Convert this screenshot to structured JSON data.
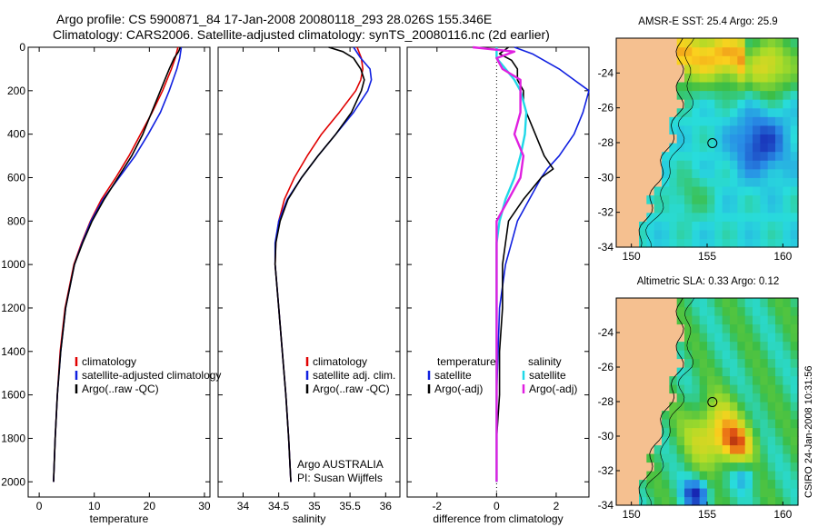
{
  "header": {
    "line1": "Argo profile: CS 5900871_84 17-Jan-2008 20080118_293 28.026S 155.346E",
    "line2": "Climatology: CARS2006. Satellite-adjusted climatology: synTS_20080116.nc (2d earlier)"
  },
  "colors": {
    "climatology": "#e00000",
    "satellite": "#1020e0",
    "argo": "#000000",
    "sat_salinity": "#20d8e8",
    "argo_adj_salinity": "#e020e0",
    "land": "#f5c090"
  },
  "credit": {
    "org": "Argo AUSTRALIA",
    "pi": "PI: Susan Wijffels"
  },
  "stamp": "CSIRO 24-Jan-2008 10:31:56",
  "chart_data": [
    {
      "type": "line",
      "name": "temperature-profile",
      "xlabel": "temperature",
      "ylabel": "",
      "xlim": [
        -2,
        31
      ],
      "ylim": [
        2070,
        0
      ],
      "xticks": [
        0,
        10,
        20,
        30
      ],
      "yticks": [
        0,
        200,
        400,
        600,
        800,
        1000,
        1200,
        1400,
        1600,
        1800,
        2000
      ],
      "legend": [
        "climatology",
        "satellite-adjusted climatology",
        "Argo(..raw -QC)"
      ],
      "series": [
        {
          "name": "climatology",
          "color": "#e00000",
          "depth": [
            0,
            50,
            100,
            150,
            200,
            300,
            400,
            500,
            600,
            700,
            800,
            900,
            1000,
            1200,
            1400,
            1600,
            1800,
            2000
          ],
          "values": [
            25.2,
            24.7,
            24.0,
            23.2,
            22.4,
            20.5,
            18.4,
            16.3,
            13.9,
            11.3,
            9.3,
            7.7,
            6.3,
            4.7,
            3.8,
            3.3,
            2.9,
            2.6
          ]
        },
        {
          "name": "satellite-adjusted climatology",
          "color": "#1020e0",
          "depth": [
            0,
            50,
            100,
            150,
            200,
            300,
            400,
            500,
            600,
            700,
            800,
            900,
            1000,
            1200,
            1400,
            1600,
            1800,
            2000
          ],
          "values": [
            25.8,
            25.5,
            25.0,
            24.3,
            23.6,
            22.0,
            19.8,
            17.4,
            14.5,
            11.6,
            9.4,
            7.8,
            6.4,
            4.8,
            3.9,
            3.3,
            2.9,
            2.6
          ]
        },
        {
          "name": "Argo(..raw -QC)",
          "color": "#000000",
          "depth": [
            0,
            20,
            50,
            100,
            150,
            200,
            300,
            400,
            500,
            600,
            700,
            800,
            900,
            1000,
            1200,
            1400,
            1600,
            1800,
            2000
          ],
          "values": [
            25.6,
            25.3,
            24.5,
            23.6,
            22.8,
            22.0,
            20.4,
            18.8,
            16.8,
            14.3,
            11.8,
            9.6,
            7.9,
            6.4,
            4.8,
            3.9,
            3.3,
            2.9,
            2.6
          ]
        }
      ]
    },
    {
      "type": "line",
      "name": "salinity-profile",
      "xlabel": "salinity",
      "ylabel": "",
      "xlim": [
        33.65,
        36.2
      ],
      "ylim": [
        2070,
        0
      ],
      "xticks": [
        34,
        34.5,
        35,
        35.5,
        36
      ],
      "legend": [
        "climatology",
        "satellite adj. clim.",
        "Argo(..raw -QC)"
      ],
      "series": [
        {
          "name": "climatology",
          "color": "#e00000",
          "depth": [
            0,
            50,
            100,
            150,
            200,
            300,
            400,
            500,
            600,
            700,
            800,
            900,
            1000,
            1200,
            1400,
            1600,
            1800,
            2000
          ],
          "values": [
            35.6,
            35.66,
            35.68,
            35.65,
            35.58,
            35.35,
            35.1,
            34.9,
            34.72,
            34.58,
            34.5,
            34.46,
            34.45,
            34.5,
            34.55,
            34.6,
            34.64,
            34.67
          ]
        },
        {
          "name": "satellite adj. clim.",
          "color": "#1020e0",
          "depth": [
            0,
            50,
            100,
            150,
            200,
            300,
            400,
            500,
            600,
            700,
            800,
            900,
            1000,
            1200,
            1400,
            1600,
            1800,
            2000
          ],
          "values": [
            35.55,
            35.65,
            35.78,
            35.8,
            35.75,
            35.55,
            35.3,
            35.05,
            34.82,
            34.62,
            34.5,
            34.45,
            34.45,
            34.5,
            34.55,
            34.6,
            34.64,
            34.67
          ]
        },
        {
          "name": "Argo(..raw -QC)",
          "color": "#000000",
          "depth": [
            0,
            20,
            50,
            100,
            150,
            200,
            300,
            400,
            500,
            600,
            700,
            800,
            900,
            1000,
            1200,
            1400,
            1600,
            1800,
            2000
          ],
          "values": [
            35.2,
            35.4,
            35.55,
            35.65,
            35.7,
            35.66,
            35.52,
            35.3,
            35.05,
            34.82,
            34.63,
            34.52,
            34.46,
            34.45,
            34.5,
            34.55,
            34.6,
            34.64,
            34.67
          ]
        }
      ]
    },
    {
      "type": "line",
      "name": "difference-profile",
      "xlabel": "difference from climatology",
      "ylabel": "",
      "xlim": [
        -3,
        3.1
      ],
      "ylim": [
        2070,
        0
      ],
      "xticks": [
        -2,
        0,
        2
      ],
      "legend_left_title": "temperature",
      "legend_right_title": "salinity",
      "legend": [
        "satellite",
        "Argo(-adj)",
        "satellite",
        "Argo(-adj)"
      ],
      "series": [
        {
          "name": "temperature satellite",
          "color": "#1020e0",
          "depth": [
            0,
            30,
            100,
            150,
            200,
            300,
            400,
            500,
            560,
            600,
            700,
            800,
            900,
            1000,
            1200,
            1400,
            1600,
            1800,
            2000
          ],
          "values": [
            0.6,
            1.2,
            2.1,
            2.6,
            3.1,
            2.9,
            2.6,
            2.1,
            1.7,
            1.5,
            1.1,
            0.7,
            0.5,
            0.3,
            0.1,
            0.05,
            0.0,
            0.0,
            0.0
          ]
        },
        {
          "name": "temperature Argo(-adj)",
          "color": "#000000",
          "depth": [
            0,
            30,
            60,
            100,
            150,
            200,
            250,
            300,
            400,
            500,
            560,
            600,
            700,
            800,
            900,
            1000,
            1200,
            1400,
            1600,
            1800,
            2000
          ],
          "values": [
            0.4,
            0.1,
            0.5,
            0.7,
            0.7,
            0.9,
            0.9,
            1.0,
            1.3,
            1.6,
            1.9,
            1.5,
            0.9,
            0.4,
            0.3,
            0.2,
            0.2,
            0.1,
            0.1,
            0.0,
            0.0
          ]
        },
        {
          "name": "salinity satellite",
          "color": "#20d8e8",
          "depth": [
            0,
            50,
            100,
            150,
            200,
            300,
            400,
            500,
            600,
            700,
            800,
            900,
            1000,
            1200,
            1400,
            1600,
            1800,
            2000
          ],
          "values": [
            0.0,
            0.0,
            0.3,
            0.6,
            0.8,
            1.0,
            0.95,
            0.8,
            0.6,
            0.3,
            0.1,
            0.0,
            0.0,
            0.0,
            0.0,
            0.0,
            0.0,
            0.0
          ]
        },
        {
          "name": "salinity Argo(-adj)",
          "color": "#e020e0",
          "depth": [
            0,
            20,
            50,
            100,
            150,
            200,
            300,
            400,
            500,
            600,
            700,
            800,
            900,
            1000,
            1200,
            1400,
            1600,
            1800,
            2000
          ],
          "values": [
            -0.8,
            0.6,
            0.0,
            0.2,
            0.8,
            0.8,
            0.8,
            0.6,
            0.9,
            0.8,
            0.4,
            0.0,
            0.0,
            0.0,
            0.0,
            0.0,
            0.0,
            0.0,
            0.0
          ]
        }
      ]
    },
    {
      "type": "heatmap",
      "name": "sst-map",
      "title": "AMSR-E SST: 25.4 Argo: 25.9",
      "xlim": [
        149,
        161
      ],
      "ylim": [
        -34,
        -22
      ],
      "xticks": [
        150,
        155,
        160
      ],
      "yticks": [
        -24,
        -26,
        -28,
        -30,
        -32,
        -34
      ],
      "marker": {
        "lon": 155.346,
        "lat": -28.026
      }
    },
    {
      "type": "heatmap",
      "name": "sla-map",
      "title": "Altimetric SLA: 0.33 Argo: 0.12",
      "xlim": [
        149,
        161
      ],
      "ylim": [
        -34,
        -22
      ],
      "xticks": [
        150,
        155,
        160
      ],
      "yticks": [
        -24,
        -26,
        -28,
        -30,
        -32,
        -34
      ],
      "marker": {
        "lon": 155.346,
        "lat": -28.026
      }
    }
  ]
}
